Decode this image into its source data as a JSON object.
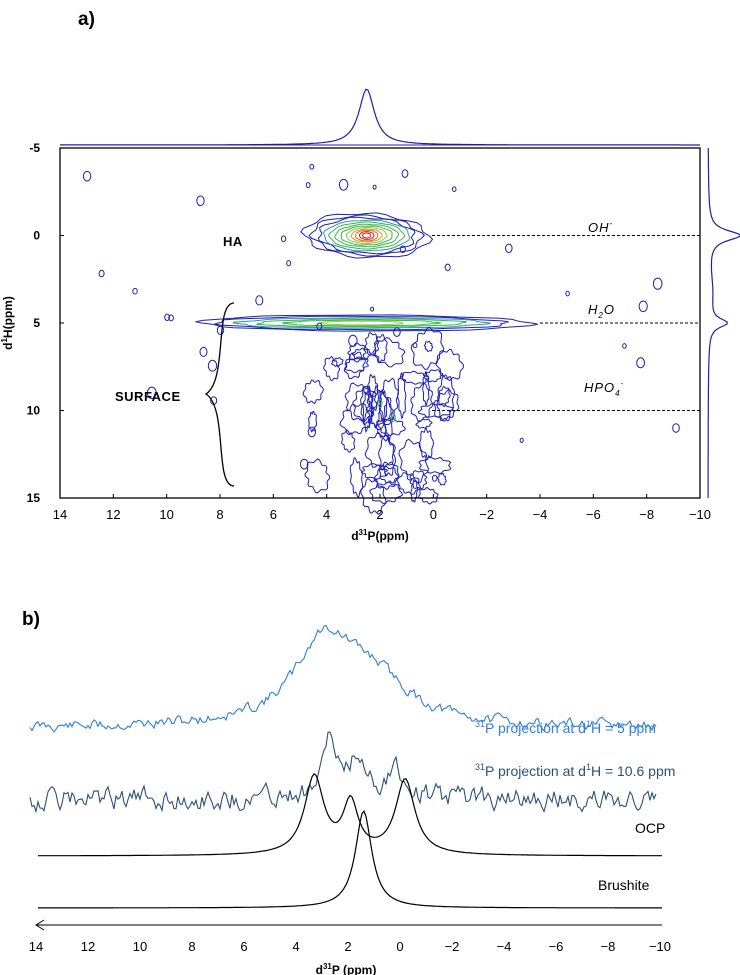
{
  "panels": {
    "a_label": "a)",
    "b_label": "b)"
  },
  "chart_data": [
    {
      "type": "heatmap",
      "subtype": "2D HETCOR contour plot",
      "xlabel_parts": [
        "d",
        "31",
        "P(ppm)"
      ],
      "ylabel_parts": [
        "d",
        "1",
        "H(ppm)"
      ],
      "xlim": [
        14,
        -10
      ],
      "ylim": [
        -5,
        15
      ],
      "x_ticks": [
        "14",
        "12",
        "10",
        "8",
        "6",
        "4",
        "2",
        "0",
        "−2",
        "−4",
        "−6",
        "−8",
        "−10"
      ],
      "x_tick_values": [
        14,
        12,
        10,
        8,
        6,
        4,
        2,
        0,
        -2,
        -4,
        -6,
        -8,
        -10
      ],
      "y_ticks": [
        "-5",
        "0",
        "5",
        "10",
        "15"
      ],
      "y_tick_values": [
        -5,
        0,
        5,
        10,
        15
      ],
      "region_labels": {
        "ha": "HA",
        "surface": "SURFACE"
      },
      "peak_labels": [
        {
          "main": "OH",
          "sup": "-",
          "sub": "",
          "h_ppm": 0
        },
        {
          "main": "H",
          "sub": "2",
          "rest": "O",
          "h_ppm": 5
        },
        {
          "main": "HPO",
          "sub": "4",
          "sup": "-",
          "h_ppm": 10
        }
      ],
      "contour_peaks": [
        {
          "name": "HA",
          "p_ppm": 2.5,
          "h_ppm": 0.0
        },
        {
          "name": "H2O",
          "p_ppm": 2.5,
          "h_ppm": 5.0
        },
        {
          "name": "HPO4",
          "p_ppm": 2.0,
          "h_ppm": 10.0
        }
      ],
      "colors": {
        "frame": "#000000",
        "contour_outer": "#1f1fb4",
        "contour_mid": "#3cb44b",
        "contour_inner": "#d7191c",
        "projection": "#1f1fb4"
      }
    },
    {
      "type": "line",
      "subtype": "31P NMR spectra (stacked)",
      "xlabel_parts": [
        "d",
        "31",
        "P (ppm)"
      ],
      "xlim": [
        14,
        -10
      ],
      "x_ticks": [
        "14",
        "12",
        "10",
        "8",
        "6",
        "4",
        "2",
        "0",
        "−2",
        "−4",
        "−6",
        "−8",
        "−10"
      ],
      "x_tick_values": [
        14,
        12,
        10,
        8,
        6,
        4,
        2,
        0,
        -2,
        -4,
        -6,
        -8,
        -10
      ],
      "series": [
        {
          "name_parts": [
            "31",
            "P projection at d",
            "1",
            "H = 5 ppm"
          ],
          "color": "#2f7fd6",
          "peaks_ppm": [
            2.8
          ]
        },
        {
          "name_parts": [
            "31",
            "P projection at d",
            "1",
            "H = 10.6 ppm"
          ],
          "color": "#2c4f7c",
          "peaks_ppm": [
            2.7,
            1.5,
            0.2
          ]
        },
        {
          "name": "OCP",
          "color": "#000000",
          "peaks_ppm": [
            3.3,
            1.9,
            -0.2
          ]
        },
        {
          "name": "Brushite",
          "color": "#000000",
          "peaks_ppm": [
            1.4
          ]
        }
      ]
    }
  ]
}
